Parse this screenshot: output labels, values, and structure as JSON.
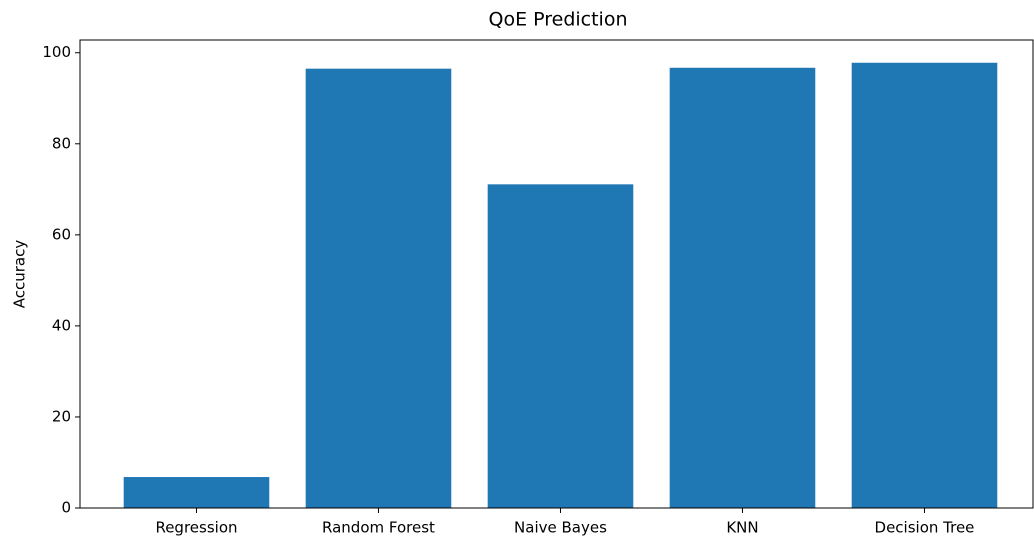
{
  "chart_data": {
    "type": "bar",
    "title": "QoE Prediction",
    "y_label": "Accuracy",
    "categories": [
      "Regression",
      "Random Forest",
      "Naive Bayes",
      "KNN",
      "Decision Tree"
    ],
    "values": [
      6.8,
      96.5,
      71.1,
      96.7,
      97.8
    ],
    "color": "#1f77b4",
    "ylim": [
      0,
      102.8
    ],
    "yticks": [
      0,
      20,
      40,
      60,
      80,
      100
    ],
    "grid": false
  }
}
